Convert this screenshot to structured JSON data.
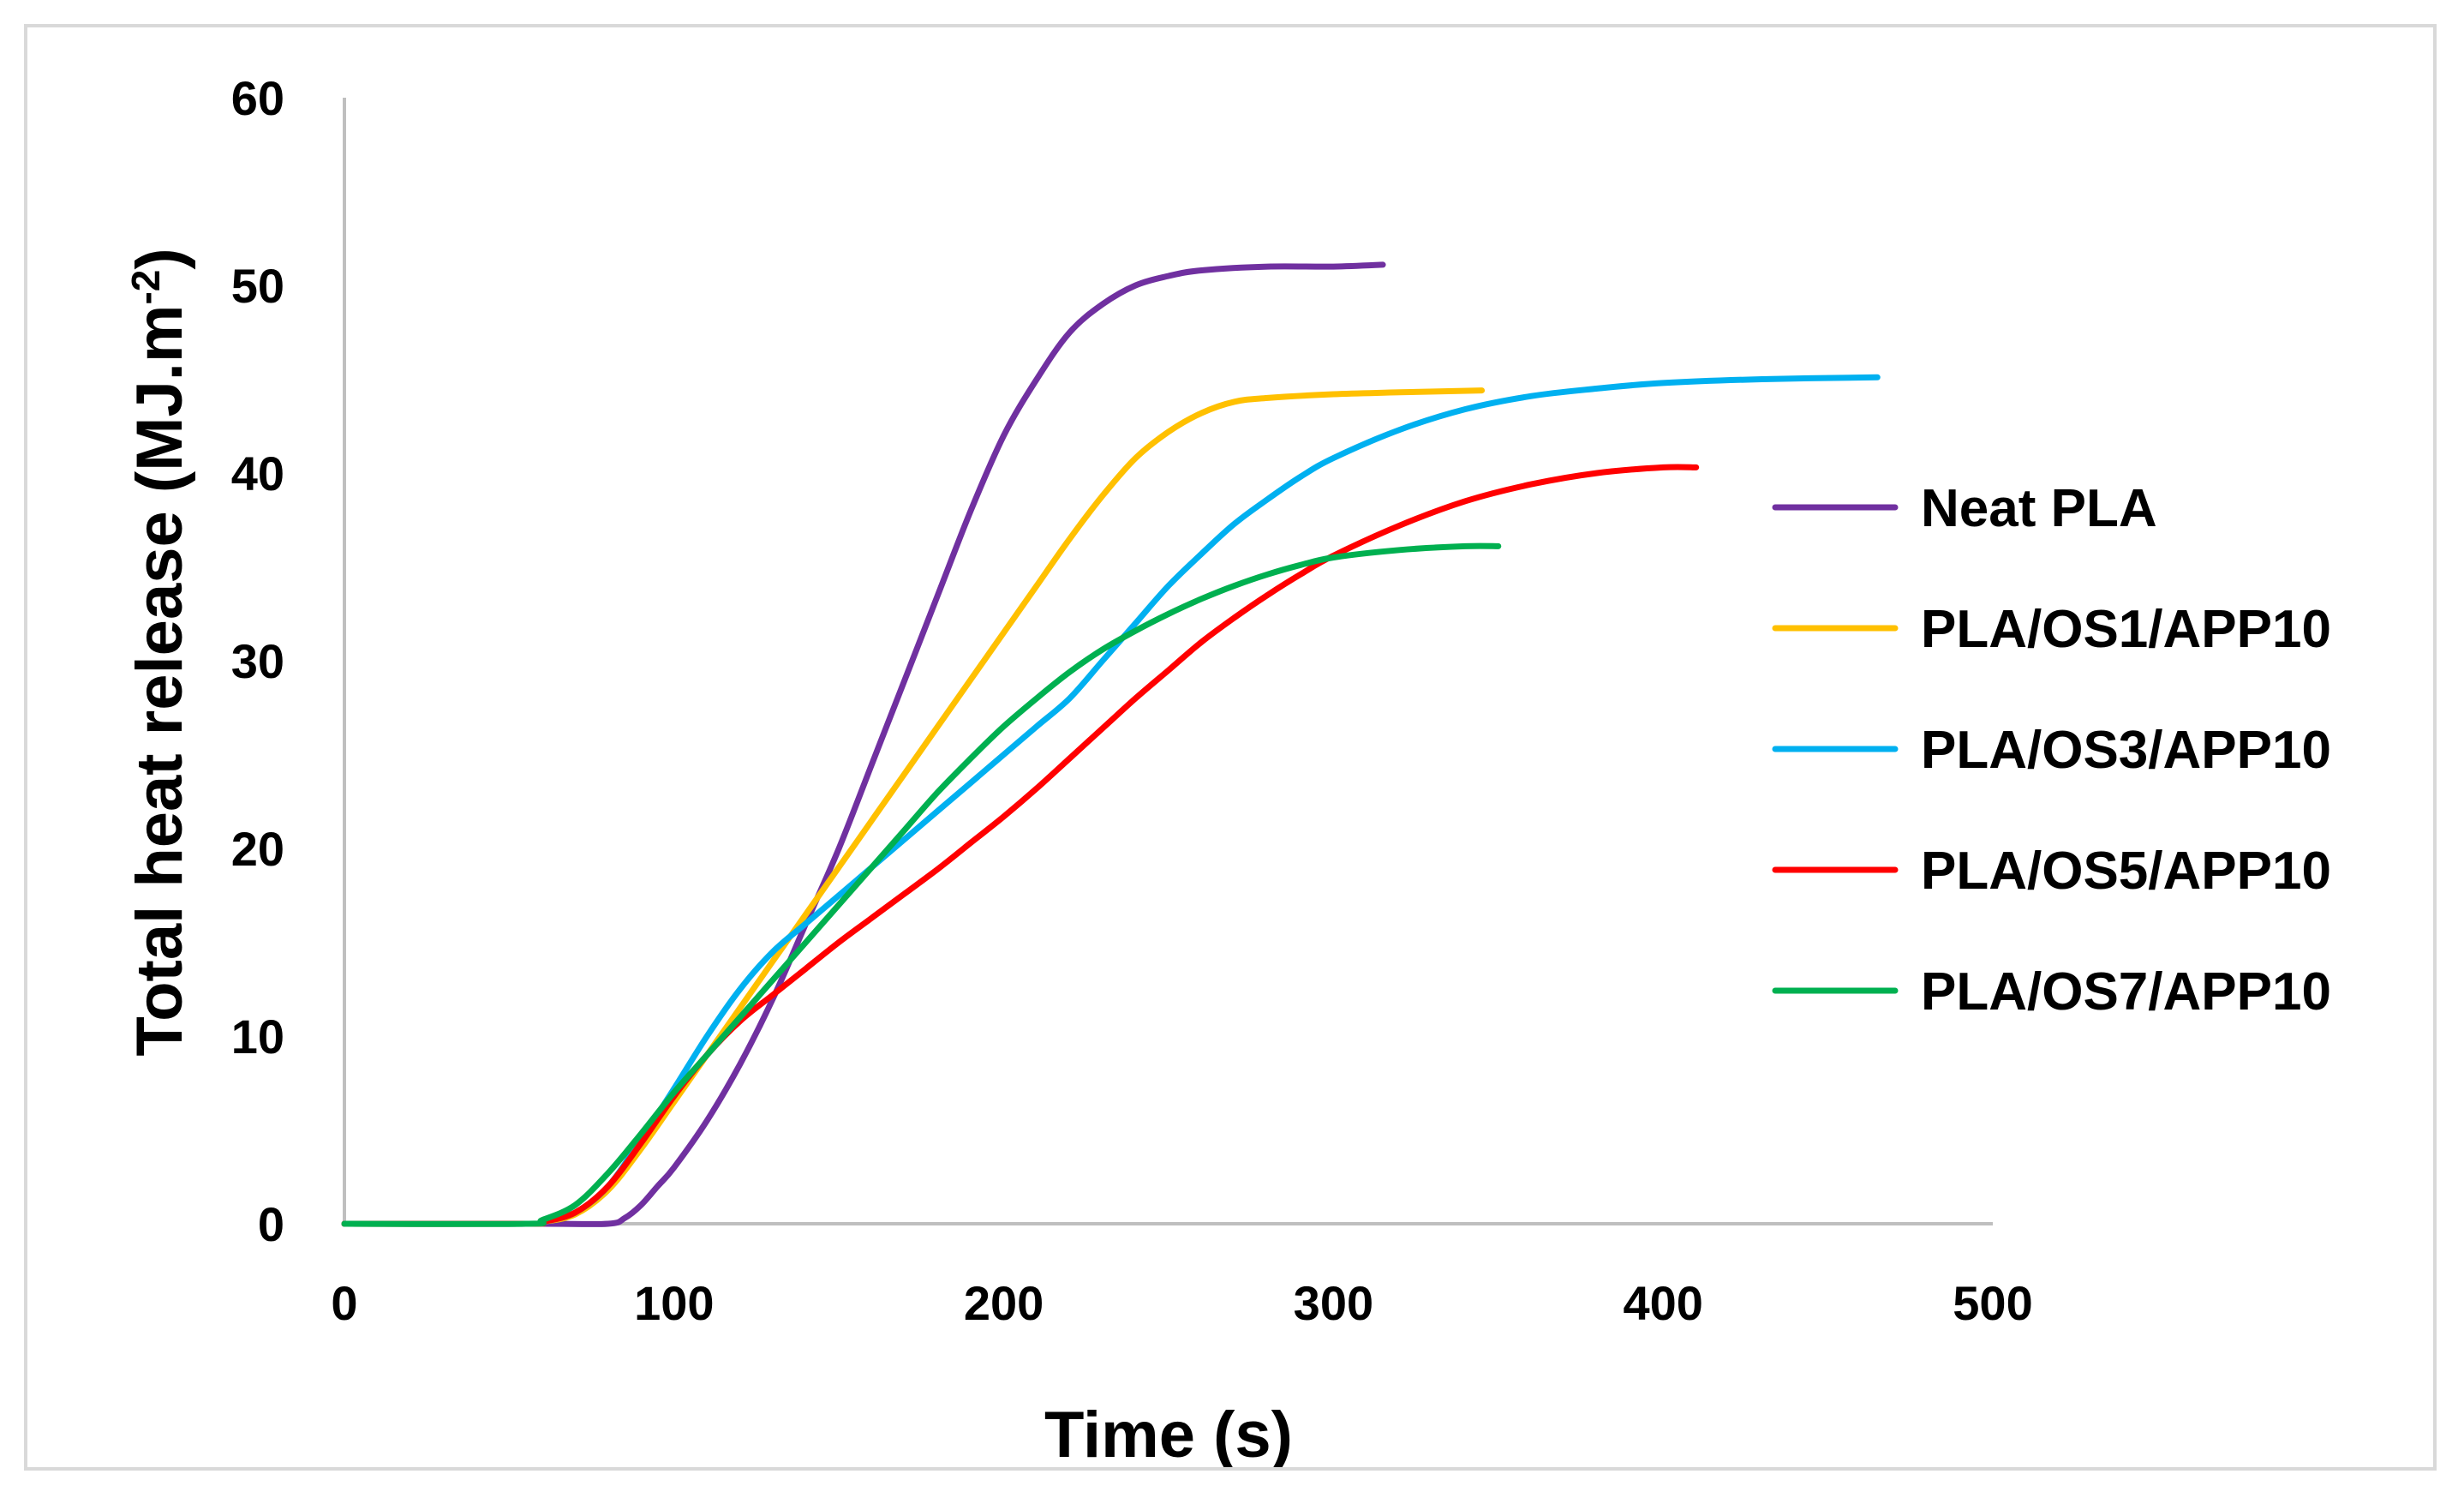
{
  "chart_data": {
    "type": "line",
    "title": "",
    "xlabel": "Time (s)",
    "ylabel": {
      "main": "Total heat release (MJ.m",
      "superscript": "-2",
      "close": ")"
    },
    "xlim": [
      0,
      500
    ],
    "ylim": [
      0,
      60
    ],
    "xticks": [
      0,
      100,
      200,
      300,
      400,
      500
    ],
    "yticks": [
      0,
      10,
      20,
      30,
      40,
      50,
      60
    ],
    "grid": false,
    "legend_position": "right",
    "series": [
      {
        "name": "Neat PLA",
        "color": "#7030A0",
        "points": [
          [
            0,
            0
          ],
          [
            60,
            0
          ],
          [
            80,
            0
          ],
          [
            85,
            0.3
          ],
          [
            90,
            1
          ],
          [
            95,
            2
          ],
          [
            100,
            3
          ],
          [
            110,
            5.5
          ],
          [
            120,
            8.5
          ],
          [
            130,
            12
          ],
          [
            140,
            16
          ],
          [
            150,
            20
          ],
          [
            160,
            24.5
          ],
          [
            170,
            29
          ],
          [
            180,
            33.5
          ],
          [
            190,
            38
          ],
          [
            200,
            42
          ],
          [
            210,
            45
          ],
          [
            220,
            47.5
          ],
          [
            230,
            49
          ],
          [
            240,
            50
          ],
          [
            250,
            50.5
          ],
          [
            260,
            50.8
          ],
          [
            280,
            51
          ],
          [
            300,
            51
          ],
          [
            315,
            51.1
          ]
        ]
      },
      {
        "name": "PLA/OS1/APP10",
        "color": "#FFC000",
        "points": [
          [
            0,
            0
          ],
          [
            55,
            0
          ],
          [
            60,
            0.1
          ],
          [
            70,
            0.5
          ],
          [
            80,
            1.8
          ],
          [
            90,
            4
          ],
          [
            100,
            6.5
          ],
          [
            110,
            9
          ],
          [
            120,
            11.5
          ],
          [
            130,
            14
          ],
          [
            140,
            16.5
          ],
          [
            150,
            19
          ],
          [
            160,
            21.5
          ],
          [
            170,
            24
          ],
          [
            180,
            26.5
          ],
          [
            190,
            29
          ],
          [
            200,
            31.5
          ],
          [
            210,
            34
          ],
          [
            220,
            36.5
          ],
          [
            230,
            38.8
          ],
          [
            240,
            40.8
          ],
          [
            250,
            42.2
          ],
          [
            260,
            43.2
          ],
          [
            270,
            43.8
          ],
          [
            280,
            44
          ],
          [
            300,
            44.2
          ],
          [
            320,
            44.3
          ],
          [
            345,
            44.4
          ]
        ]
      },
      {
        "name": "PLA/OS3/APP10",
        "color": "#00B0F0",
        "points": [
          [
            0,
            0
          ],
          [
            55,
            0
          ],
          [
            60,
            0.1
          ],
          [
            70,
            0.6
          ],
          [
            80,
            2
          ],
          [
            90,
            4.5
          ],
          [
            100,
            7.2
          ],
          [
            110,
            10
          ],
          [
            120,
            12.5
          ],
          [
            130,
            14.5
          ],
          [
            140,
            16
          ],
          [
            150,
            17.5
          ],
          [
            160,
            19
          ],
          [
            170,
            20.5
          ],
          [
            180,
            22
          ],
          [
            190,
            23.5
          ],
          [
            200,
            25
          ],
          [
            210,
            26.5
          ],
          [
            220,
            28
          ],
          [
            230,
            30
          ],
          [
            240,
            32
          ],
          [
            250,
            34
          ],
          [
            260,
            35.7
          ],
          [
            270,
            37.3
          ],
          [
            280,
            38.6
          ],
          [
            290,
            39.8
          ],
          [
            300,
            40.8
          ],
          [
            320,
            42.3
          ],
          [
            340,
            43.4
          ],
          [
            360,
            44.1
          ],
          [
            380,
            44.5
          ],
          [
            400,
            44.8
          ],
          [
            430,
            45
          ],
          [
            465,
            45.1
          ]
        ]
      },
      {
        "name": "PLA/OS5/APP10",
        "color": "#FF0000",
        "points": [
          [
            0,
            0
          ],
          [
            55,
            0
          ],
          [
            60,
            0.1
          ],
          [
            70,
            0.6
          ],
          [
            80,
            2
          ],
          [
            90,
            4.3
          ],
          [
            100,
            6.8
          ],
          [
            110,
            9
          ],
          [
            120,
            10.8
          ],
          [
            130,
            12.2
          ],
          [
            140,
            13.6
          ],
          [
            150,
            15
          ],
          [
            160,
            16.3
          ],
          [
            170,
            17.6
          ],
          [
            180,
            18.9
          ],
          [
            190,
            20.3
          ],
          [
            200,
            21.7
          ],
          [
            210,
            23.2
          ],
          [
            220,
            24.8
          ],
          [
            230,
            26.4
          ],
          [
            240,
            28
          ],
          [
            250,
            29.5
          ],
          [
            260,
            31
          ],
          [
            270,
            32.3
          ],
          [
            280,
            33.5
          ],
          [
            290,
            34.6
          ],
          [
            300,
            35.6
          ],
          [
            320,
            37.2
          ],
          [
            340,
            38.5
          ],
          [
            360,
            39.4
          ],
          [
            380,
            40
          ],
          [
            400,
            40.3
          ],
          [
            410,
            40.3
          ]
        ]
      },
      {
        "name": "PLA/OS7/APP10",
        "color": "#00B050",
        "points": [
          [
            0,
            0
          ],
          [
            55,
            0
          ],
          [
            60,
            0.2
          ],
          [
            70,
            1
          ],
          [
            80,
            2.7
          ],
          [
            90,
            4.8
          ],
          [
            100,
            7
          ],
          [
            110,
            9
          ],
          [
            120,
            11
          ],
          [
            130,
            13
          ],
          [
            140,
            15
          ],
          [
            150,
            17
          ],
          [
            160,
            19
          ],
          [
            170,
            21
          ],
          [
            180,
            23
          ],
          [
            190,
            24.8
          ],
          [
            200,
            26.5
          ],
          [
            210,
            28
          ],
          [
            220,
            29.4
          ],
          [
            230,
            30.6
          ],
          [
            240,
            31.6
          ],
          [
            250,
            32.5
          ],
          [
            260,
            33.3
          ],
          [
            270,
            34
          ],
          [
            280,
            34.6
          ],
          [
            290,
            35.1
          ],
          [
            300,
            35.5
          ],
          [
            320,
            35.9
          ],
          [
            340,
            36.1
          ],
          [
            350,
            36.1
          ]
        ]
      }
    ]
  }
}
